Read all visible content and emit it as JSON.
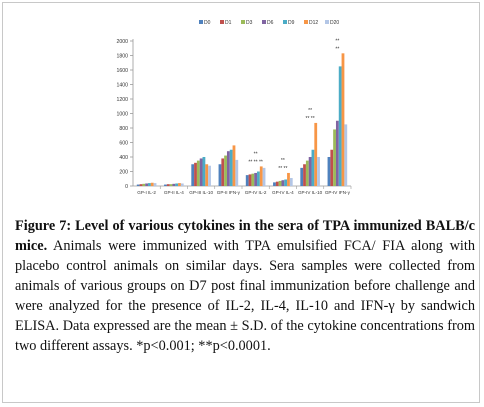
{
  "chart_data": {
    "type": "bar",
    "categories": [
      "GP-I IL-2",
      "GP-II IL-4",
      "GP-III IL-10",
      "GP-II IFN-γ",
      "GP-IV IL-2",
      "GP-IV IL-4",
      "GP-IV IL-10",
      "GP-IV IFN-γ"
    ],
    "series": [
      {
        "name": "D0",
        "color": "#4f81bd",
        "values": [
          20,
          20,
          300,
          300,
          150,
          50,
          250,
          400
        ]
      },
      {
        "name": "D1",
        "color": "#c0504d",
        "values": [
          25,
          25,
          320,
          380,
          160,
          60,
          300,
          500
        ]
      },
      {
        "name": "D3",
        "color": "#9bbb59",
        "values": [
          30,
          25,
          350,
          420,
          170,
          70,
          350,
          780
        ]
      },
      {
        "name": "D6",
        "color": "#8064a2",
        "values": [
          35,
          30,
          380,
          480,
          180,
          80,
          400,
          900
        ]
      },
      {
        "name": "D9",
        "color": "#4bacc6",
        "values": [
          40,
          35,
          400,
          500,
          200,
          90,
          500,
          1650
        ]
      },
      {
        "name": "D12",
        "color": "#f79646",
        "values": [
          45,
          40,
          300,
          560,
          270,
          180,
          870,
          1830
        ]
      },
      {
        "name": "D20",
        "color": "#b3c6e6",
        "values": [
          40,
          35,
          280,
          360,
          250,
          110,
          400,
          850
        ]
      }
    ],
    "annotations": [
      {
        "category": "GP-IV IL-2",
        "text": "** ** **"
      },
      {
        "category": "GP-IV IL-2",
        "text": "**"
      },
      {
        "category": "GP-IV IL-4",
        "text": "** **"
      },
      {
        "category": "GP-IV IL-4",
        "text": "**"
      },
      {
        "category": "GP-IV IL-10",
        "text": "** **"
      },
      {
        "category": "GP-IV IL-10",
        "text": "**"
      },
      {
        "category": "GP-IV IFN-γ",
        "text": "**"
      },
      {
        "category": "GP-IV IFN-γ",
        "text": "**"
      }
    ],
    "yticks": [
      0,
      200,
      400,
      600,
      800,
      1000,
      1200,
      1400,
      1600,
      1800,
      2000
    ],
    "ylim": [
      0,
      2000
    ],
    "legend": "top",
    "grid": false
  },
  "caption": {
    "title": "Figure 7: Level of various cytokines in the sera of TPA immunized BALB/c mice.",
    "body": "Animals were immunized with TPA emulsified FCA/ FIA along with placebo control animals on similar days. Sera samples were collected from animals of various groups on D7 post final immunization before challenge and were analyzed for the presence of IL-2, IL-4, IL-10 and IFN-γ by sandwich ELISA. Data expressed are the mean ± S.D. of the cytokine concentrations from two different assays. *p<0.001; **p<0.0001."
  }
}
